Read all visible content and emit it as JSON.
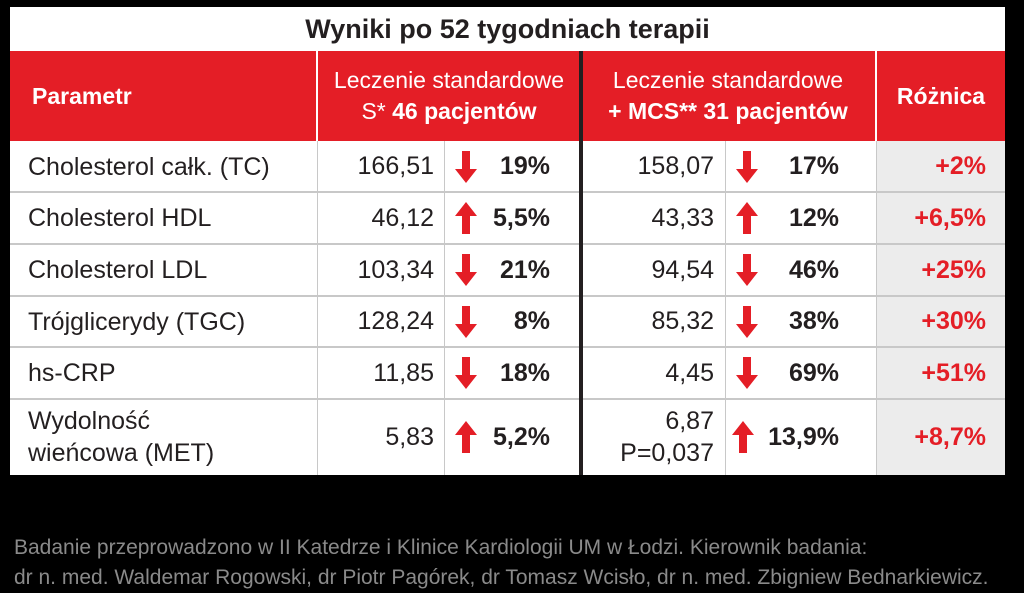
{
  "title": "Wyniki po 52 tygodniach terapii",
  "header": {
    "param": "Parametr",
    "group1_line1": "Leczenie standardowe",
    "group1_line2_prefix": "S* ",
    "group1_line2_bold": "46 pacjentów",
    "group2_line1": "Leczenie standardowe",
    "group2_line2": "+ MCS** 31 pacjentów",
    "diff": "Różnica"
  },
  "rows": [
    {
      "param": "Cholesterol całk. (TC)",
      "v1": "166,51",
      "d1": "down",
      "p1": "19%",
      "v2": "158,07",
      "d2": "down",
      "p2": "17%",
      "diff": "+2%"
    },
    {
      "param": "Cholesterol HDL",
      "v1": "46,12",
      "d1": "up",
      "p1": "5,5%",
      "v2": "43,33",
      "d2": "up",
      "p2": "12%",
      "diff": "+6,5%"
    },
    {
      "param": "Cholesterol LDL",
      "v1": "103,34",
      "d1": "down",
      "p1": "21%",
      "v2": "94,54",
      "d2": "down",
      "p2": "46%",
      "diff": "+25%"
    },
    {
      "param": "Trójglicerydy (TGC)",
      "v1": "128,24",
      "d1": "down",
      "p1": "8%",
      "v2": "85,32",
      "d2": "down",
      "p2": "38%",
      "diff": "+30%"
    },
    {
      "param": "hs-CRP",
      "v1": "11,85",
      "d1": "down",
      "p1": "18%",
      "v2": "4,45",
      "d2": "down",
      "p2": "69%",
      "diff": "+51%"
    },
    {
      "param_line1": "Wydolność",
      "param_line2": "wieńcowa (MET)",
      "v1": "5,83",
      "d1": "up",
      "p1": "5,2%",
      "v2_line1": "6,87",
      "v2_line2": "P=0,037",
      "d2": "up",
      "p2": "13,9%",
      "diff": "+8,7%"
    }
  ],
  "footnote": {
    "line1": "Badanie przeprowadzono w II Katedrze i Klinice Kardiologii UM w Łodzi. Kierownik badania:",
    "line2": "dr n. med. Waldemar Rogowski, dr Piotr Pagórek, dr Tomasz Wcisło, dr n. med. Zbigniew Bednarkiewicz."
  },
  "colors": {
    "accent": "#e41e26",
    "text": "#231f20",
    "diff_bg": "#ececec",
    "footnote": "#8a8a8a"
  }
}
